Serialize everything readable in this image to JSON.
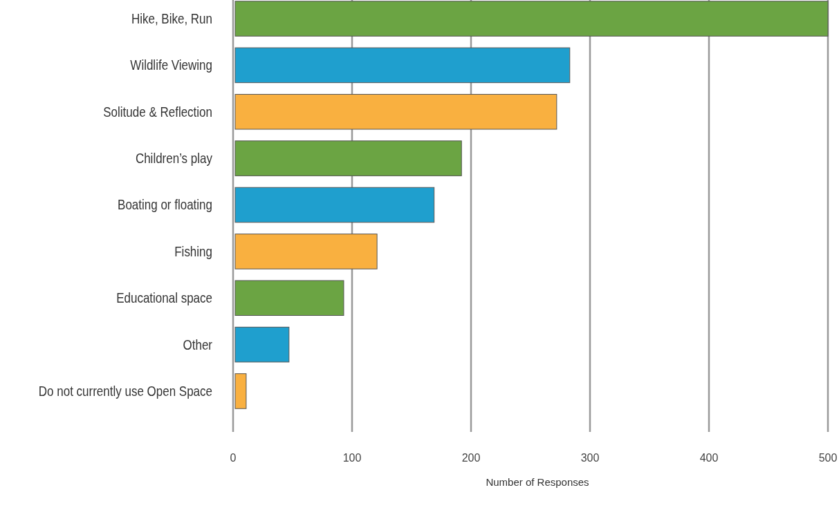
{
  "chart_data": {
    "type": "bar",
    "orientation": "horizontal",
    "xlabel": "Number of Responses",
    "categories": [
      "Hike, Bike, Run",
      "Wildlife Viewing",
      "Solitude & Reflection",
      "Children’s play",
      "Boating or floating",
      "Fishing",
      "Educational space",
      "Other",
      "Do not currently use Open Space"
    ],
    "values": [
      500,
      283,
      272,
      192,
      169,
      121,
      93,
      47,
      11
    ],
    "colors": [
      "#6ba443",
      "#1f9fce",
      "#f9b040",
      "#6ba443",
      "#1f9fce",
      "#f9b040",
      "#6ba443",
      "#1f9fce",
      "#f9b040"
    ],
    "xlim": [
      0,
      500
    ],
    "xticks": [
      0,
      100,
      200,
      300,
      400,
      500
    ],
    "grid": "x"
  }
}
